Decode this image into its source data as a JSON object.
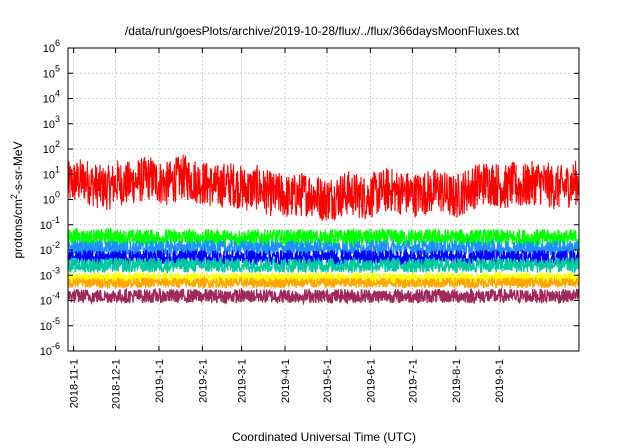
{
  "chart_data": {
    "type": "line",
    "title": "/data/run/goesPlots/archive/2019-10-28/flux/../flux/366daysMoonFluxes.txt",
    "xlabel": "Coordinated Universal Time (UTC)",
    "ylabel": "protons/cm2-s-sr-MeV",
    "ylabel_parts": [
      "protons/cm",
      "2",
      "-s-sr-MeV"
    ],
    "yscale": "log",
    "ylim": [
      1e-06,
      1000000.0
    ],
    "y_tick_exponents": [
      "-6",
      "-5",
      "-4",
      "-3",
      "-2",
      "-1",
      "0",
      "1",
      "2",
      "3",
      "4",
      "5",
      "6"
    ],
    "y_tick_base": "10",
    "xlim": [
      "2018-10-28",
      "2019-10-28"
    ],
    "x_ticks": [
      "2018-11-1",
      "2018-12-1",
      "2019-1-1",
      "2019-2-1",
      "2019-3-1",
      "2019-4-1",
      "2019-5-1",
      "2019-6-1",
      "2019-7-1",
      "2019-8-1",
      "2019-9-1"
    ],
    "grid": true,
    "legend": "none",
    "colors": [
      "#ff0000",
      "#00ff00",
      "#1e90ff",
      "#0000ff",
      "#00c8a0",
      "#ffff00",
      "#ffa500",
      "#a0285a"
    ],
    "series": [
      {
        "color": "#ff0000",
        "values": [
          4,
          5,
          6,
          4,
          3,
          3,
          5,
          4,
          5,
          6,
          7,
          5,
          4,
          6,
          8,
          6,
          5,
          4,
          3,
          4,
          4,
          3,
          2.5,
          3,
          2,
          1.5,
          1.5,
          1.2,
          1.5,
          1.8,
          1.5,
          1,
          1.2,
          1.5,
          1.8,
          1.5,
          1.2,
          1.5,
          2,
          2.5,
          2,
          1.8,
          1.5,
          1.8,
          2,
          2.5,
          1.5,
          1.2,
          2,
          3,
          4,
          5,
          4,
          3,
          4,
          3,
          4,
          5,
          4,
          3,
          3,
          4,
          5
        ]
      },
      {
        "color": "#00ff00",
        "values": [
          0.03,
          0.035,
          0.03,
          0.03,
          0.03,
          0.035,
          0.03,
          0.03,
          0.03,
          0.03,
          0.03,
          0.03,
          0.03,
          0.03,
          0.03,
          0.03,
          0.03,
          0.03,
          0.03,
          0.03,
          0.03,
          0.03,
          0.03,
          0.03,
          0.03,
          0.03,
          0.03,
          0.03,
          0.03,
          0.03,
          0.03,
          0.03,
          0.03,
          0.03,
          0.03,
          0.03,
          0.03,
          0.03,
          0.03,
          0.03,
          0.03,
          0.03,
          0.03,
          0.03,
          0.03,
          0.03,
          0.03,
          0.03,
          0.03,
          0.03,
          0.03,
          0.03,
          0.03,
          0.03,
          0.03,
          0.03,
          0.03,
          0.03,
          0.03,
          0.03,
          0.03,
          0.03,
          0.03
        ]
      },
      {
        "color": "#1e90ff",
        "values": [
          0.012,
          0.012,
          0.012,
          0.012,
          0.012,
          0.012,
          0.012,
          0.012,
          0.012,
          0.012,
          0.012,
          0.012,
          0.012,
          0.012,
          0.012,
          0.012,
          0.012,
          0.012,
          0.012,
          0.012,
          0.012,
          0.012,
          0.012,
          0.012,
          0.012,
          0.012,
          0.012,
          0.012,
          0.012,
          0.012,
          0.012,
          0.012,
          0.012,
          0.012,
          0.012,
          0.012,
          0.012,
          0.012,
          0.012,
          0.012,
          0.012,
          0.012,
          0.012,
          0.012,
          0.012,
          0.012,
          0.012,
          0.012,
          0.012,
          0.012,
          0.012,
          0.012,
          0.012,
          0.012,
          0.012,
          0.012,
          0.012,
          0.012,
          0.012,
          0.012,
          0.012,
          0.012,
          0.012
        ]
      },
      {
        "color": "#0000ff",
        "values": [
          0.005,
          0.005,
          0.005,
          0.005,
          0.005,
          0.005,
          0.005,
          0.005,
          0.005,
          0.005,
          0.005,
          0.005,
          0.005,
          0.005,
          0.005,
          0.005,
          0.005,
          0.005,
          0.005,
          0.005,
          0.005,
          0.005,
          0.005,
          0.005,
          0.005,
          0.005,
          0.005,
          0.005,
          0.005,
          0.005,
          0.005,
          0.005,
          0.005,
          0.005,
          0.005,
          0.005,
          0.005,
          0.005,
          0.005,
          0.005,
          0.005,
          0.005,
          0.005,
          0.005,
          0.005,
          0.005,
          0.005,
          0.005,
          0.005,
          0.005,
          0.005,
          0.005,
          0.005,
          0.005,
          0.005,
          0.005,
          0.005,
          0.005,
          0.005,
          0.005,
          0.005,
          0.005,
          0.005
        ]
      },
      {
        "color": "#00c8a0",
        "values": [
          0.0025,
          0.0025,
          0.0025,
          0.0025,
          0.0025,
          0.0025,
          0.0025,
          0.0025,
          0.0025,
          0.0025,
          0.0025,
          0.0025,
          0.0025,
          0.0025,
          0.0025,
          0.0025,
          0.0025,
          0.0025,
          0.0025,
          0.0025,
          0.0025,
          0.0025,
          0.0025,
          0.0025,
          0.0025,
          0.0025,
          0.0025,
          0.0025,
          0.0025,
          0.0025,
          0.0025,
          0.0025,
          0.0025,
          0.0025,
          0.0025,
          0.0025,
          0.0025,
          0.0025,
          0.0025,
          0.0025,
          0.0025,
          0.0025,
          0.0025,
          0.0025,
          0.0025,
          0.0025,
          0.0025,
          0.0025,
          0.0025,
          0.0025,
          0.0025,
          0.0025,
          0.0025,
          0.0025,
          0.0025,
          0.0025,
          0.0025,
          0.0025,
          0.0025,
          0.0025,
          0.0025,
          0.0025,
          0.0025
        ]
      },
      {
        "color": "#ffff00",
        "values": [
          0.0008,
          0.0008,
          0.0008,
          0.0008,
          0.0008,
          0.0008,
          0.0008,
          0.0008,
          0.0008,
          0.0008,
          0.0008,
          0.0008,
          0.0008,
          0.0008,
          0.0008,
          0.0008,
          0.0008,
          0.0008,
          0.0008,
          0.0008,
          0.0008,
          0.0008,
          0.0008,
          0.0008,
          0.0008,
          0.0008,
          0.0008,
          0.0008,
          0.0008,
          0.0008,
          0.0008,
          0.0008,
          0.0008,
          0.0008,
          0.0008,
          0.0008,
          0.0008,
          0.0008,
          0.0008,
          0.0008,
          0.0008,
          0.0008,
          0.0008,
          0.0008,
          0.0008,
          0.0008,
          0.0008,
          0.0008,
          0.0008,
          0.0008,
          0.0008,
          0.0008,
          0.0008,
          0.0008,
          0.0008,
          0.0008,
          0.0008,
          0.0008,
          0.0008,
          0.0008,
          0.0008,
          0.0008,
          0.0008
        ]
      },
      {
        "color": "#ffa500",
        "values": [
          0.0005,
          0.0005,
          0.0005,
          0.0005,
          0.0005,
          0.0005,
          0.0005,
          0.0005,
          0.0005,
          0.0005,
          0.0005,
          0.0005,
          0.0005,
          0.0005,
          0.0005,
          0.0005,
          0.0005,
          0.0005,
          0.0005,
          0.0005,
          0.0005,
          0.0005,
          0.0005,
          0.0005,
          0.0005,
          0.0005,
          0.0005,
          0.0005,
          0.0005,
          0.0005,
          0.0005,
          0.0005,
          0.0005,
          0.0005,
          0.0005,
          0.0005,
          0.0005,
          0.0005,
          0.0005,
          0.0005,
          0.0005,
          0.0005,
          0.0005,
          0.0005,
          0.0005,
          0.0005,
          0.0005,
          0.0005,
          0.0005,
          0.0005,
          0.0005,
          0.0005,
          0.0005,
          0.0005,
          0.0005,
          0.0005,
          0.0005,
          0.0005,
          0.0005,
          0.0005,
          0.0005,
          0.0005,
          0.0005
        ]
      },
      {
        "color": "#a0285a",
        "values": [
          0.00015,
          0.00015,
          0.00015,
          0.00015,
          0.00015,
          0.00015,
          0.00015,
          0.00015,
          0.00015,
          0.00015,
          0.00015,
          0.00015,
          0.00015,
          0.00015,
          0.00015,
          0.00015,
          0.00015,
          0.00015,
          0.00015,
          0.00015,
          0.00015,
          0.00015,
          0.00015,
          0.00015,
          0.00015,
          0.00015,
          0.00015,
          0.00015,
          0.00015,
          0.00015,
          0.00015,
          0.00015,
          0.00015,
          0.00015,
          0.00015,
          0.00015,
          0.00015,
          0.00015,
          0.00015,
          0.00015,
          0.00015,
          0.00015,
          0.00015,
          0.00015,
          0.00015,
          0.00015,
          0.00015,
          0.00015,
          0.00015,
          0.00015,
          0.00015,
          0.00015,
          0.00015,
          0.00015,
          0.00015,
          0.00015,
          0.00015,
          0.00015,
          0.00015,
          0.00015,
          0.00015,
          0.00015,
          0.00015
        ]
      }
    ]
  }
}
